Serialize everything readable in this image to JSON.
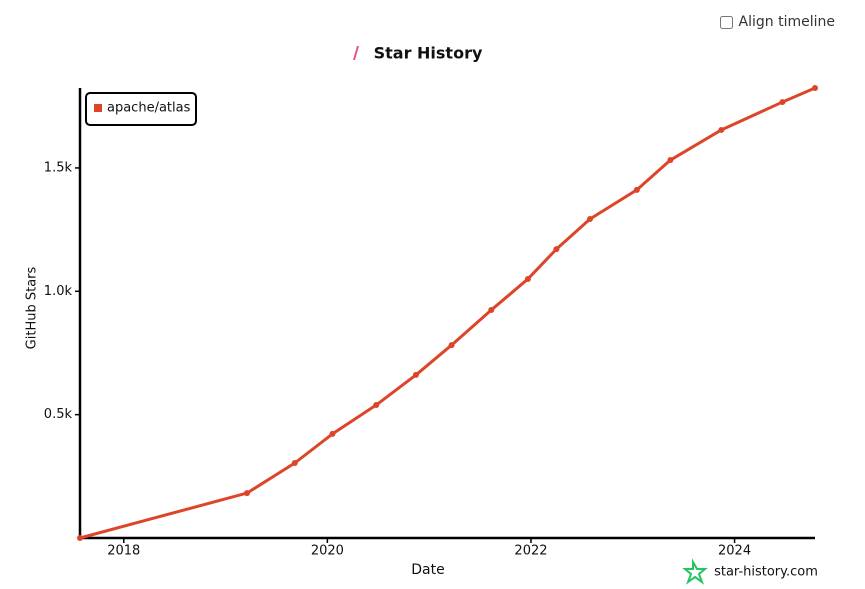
{
  "chart_data": {
    "type": "line",
    "title": "Star History",
    "xlabel": "Date",
    "ylabel": "GitHub Stars",
    "x": [
      2017.57,
      2019.21,
      2019.68,
      2020.05,
      2020.48,
      2020.87,
      2021.22,
      2021.61,
      2021.97,
      2022.25,
      2022.58,
      2023.04,
      2023.37,
      2023.87,
      2024.47,
      2024.79
    ],
    "series": [
      {
        "name": "apache/atlas",
        "color": "#dd4528",
        "values": [
          0,
          182,
          304,
          422,
          539,
          661,
          782,
          924,
          1050,
          1171,
          1293,
          1411,
          1532,
          1654,
          1767,
          1824
        ]
      }
    ],
    "xlim": [
      2017.57,
      2024.79
    ],
    "xticks": [
      2018,
      2020,
      2022,
      2024
    ],
    "ylim": [
      0,
      1824
    ],
    "yticks": [
      {
        "value": 500,
        "label": "0.5k"
      },
      {
        "value": 1000,
        "label": "1.0k"
      },
      {
        "value": 1500,
        "label": "1.5k"
      }
    ],
    "legend": "top-left"
  },
  "controls": {
    "align_timeline": "Align timeline"
  },
  "watermark": "star-history.com"
}
